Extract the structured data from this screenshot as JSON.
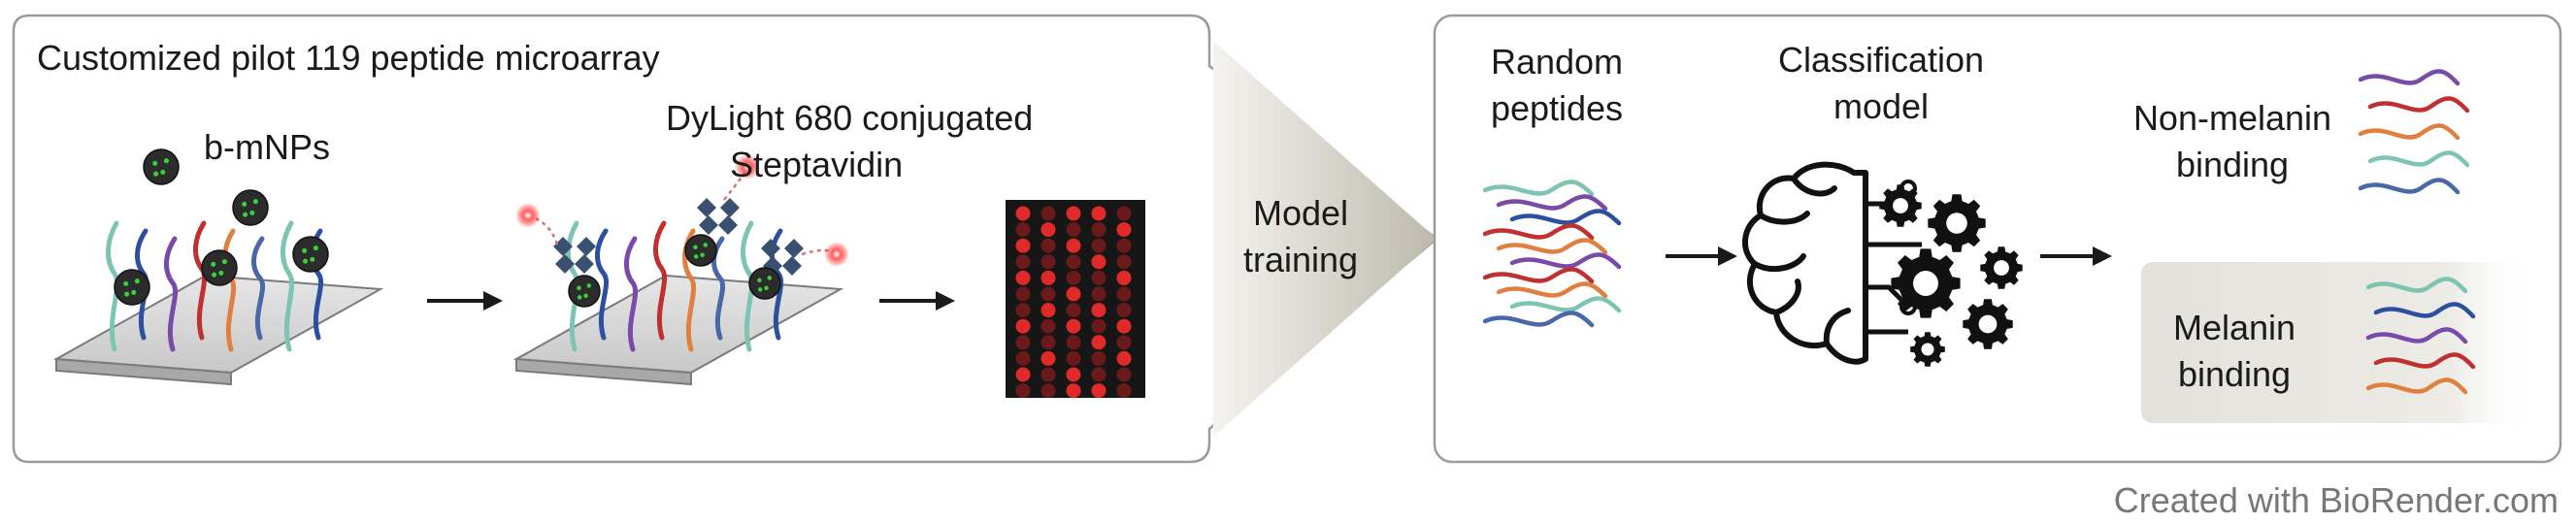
{
  "left_panel": {
    "title": "Customized pilot 119 peptide microarray",
    "bmnp_label": "b-mNPs",
    "dylight_label_line1": "DyLight 680 conjugated",
    "dylight_label_line2": "Steptavidin"
  },
  "middle": {
    "label_line1": "Model",
    "label_line2": "training"
  },
  "right_panel": {
    "random_line1": "Random",
    "random_line2": "peptides",
    "classification_line1": "Classification",
    "classification_line2": "model",
    "non_melanin_line1": "Non-melanin",
    "non_melanin_line2": "binding",
    "melanin_line1": "Melanin",
    "melanin_line2": "binding"
  },
  "footer": {
    "credit": "Created with BioRender.com"
  },
  "colors": {
    "panel_border": "#9a9a9a",
    "teal": "#7ec4b2",
    "blue": "#2d4fa0",
    "purple": "#7a4aa8",
    "red": "#c03030",
    "orange": "#e08040",
    "slate": "#4a68a8",
    "spot_bright": "#e02a2a",
    "spot_dim": "#6a1a1a",
    "array_bg": "#161616",
    "particle": "#2c2c2c",
    "particle_dot": "#3ad23a",
    "streptavidin": "#3a5070"
  },
  "array_spots": [
    [
      1,
      0,
      1,
      1,
      0
    ],
    [
      0,
      1,
      0,
      0,
      1
    ],
    [
      1,
      0,
      1,
      0,
      0
    ],
    [
      0,
      0,
      0,
      1,
      0
    ],
    [
      1,
      1,
      0,
      0,
      1
    ],
    [
      0,
      0,
      1,
      0,
      0
    ],
    [
      0,
      1,
      0,
      1,
      0
    ],
    [
      1,
      0,
      1,
      0,
      1
    ],
    [
      0,
      0,
      0,
      1,
      0
    ],
    [
      0,
      1,
      0,
      0,
      1
    ],
    [
      1,
      0,
      1,
      0,
      0
    ],
    [
      0,
      0,
      1,
      1,
      0
    ]
  ]
}
